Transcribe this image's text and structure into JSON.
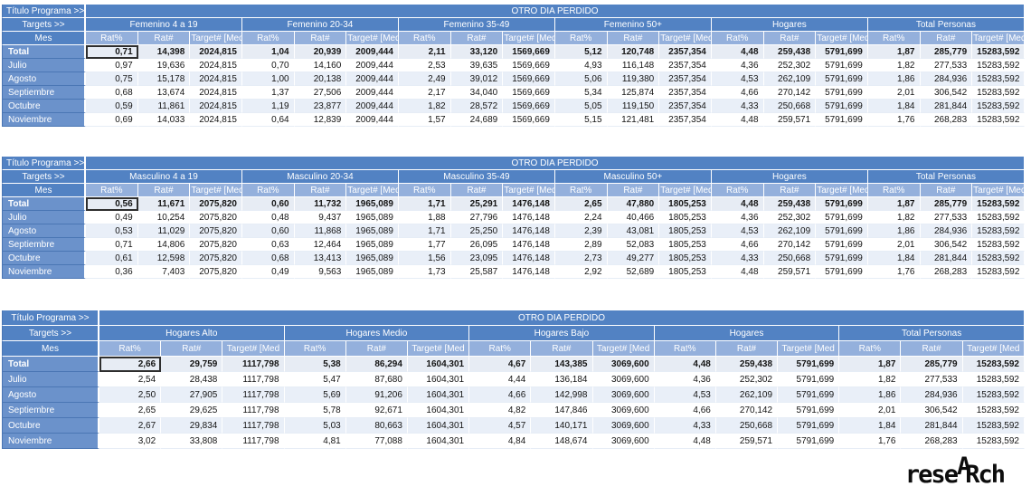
{
  "band_title": "OTRO DIA PERDIDO",
  "corner_labels": {
    "title_row": "Título Programa >>",
    "targets_row": "Targets >>",
    "mes_row": "Mes"
  },
  "subheaders": [
    "Rat%",
    "Rat#",
    "Target# [Med"
  ],
  "row_labels": [
    "Total",
    "Julio",
    "Agosto",
    "Septiembre",
    "Octubre",
    "Noviembre"
  ],
  "colors": {
    "header_blue": "#5282c3",
    "subheader_blue": "#94b0dc",
    "row_label_blue": "#6b92cb",
    "total_row_bg": "#e7ecf4",
    "banded_row_bg": "#e9eff8",
    "selection_border": "#2e2e2e"
  },
  "tables": [
    {
      "id": "femenino",
      "label_col_width": 93,
      "groups": [
        {
          "label": "Femenino 4 a 19",
          "target": "2024,815",
          "rows": [
            [
              "0,71",
              "14,398"
            ],
            [
              "0,97",
              "19,636"
            ],
            [
              "0,75",
              "15,178"
            ],
            [
              "0,68",
              "13,674"
            ],
            [
              "0,59",
              "11,861"
            ],
            [
              "0,69",
              "14,033"
            ]
          ]
        },
        {
          "label": "Femenino 20-34",
          "target": "2009,444",
          "rows": [
            [
              "1,04",
              "20,939"
            ],
            [
              "0,70",
              "14,160"
            ],
            [
              "1,00",
              "20,138"
            ],
            [
              "1,37",
              "27,506"
            ],
            [
              "1,19",
              "23,877"
            ],
            [
              "0,64",
              "12,839"
            ]
          ]
        },
        {
          "label": "Femenino 35-49",
          "target": "1569,669",
          "rows": [
            [
              "2,11",
              "33,120"
            ],
            [
              "2,53",
              "39,635"
            ],
            [
              "2,49",
              "39,012"
            ],
            [
              "2,17",
              "34,040"
            ],
            [
              "1,82",
              "28,572"
            ],
            [
              "1,57",
              "24,689"
            ]
          ]
        },
        {
          "label": "Femenino 50+",
          "target": "2357,354",
          "rows": [
            [
              "5,12",
              "120,748"
            ],
            [
              "4,93",
              "116,148"
            ],
            [
              "5,06",
              "119,380"
            ],
            [
              "5,34",
              "125,874"
            ],
            [
              "5,05",
              "119,150"
            ],
            [
              "5,15",
              "121,481"
            ]
          ]
        },
        {
          "label": "Hogares",
          "target": "5791,699",
          "rows": [
            [
              "4,48",
              "259,438"
            ],
            [
              "4,36",
              "252,302"
            ],
            [
              "4,53",
              "262,109"
            ],
            [
              "4,66",
              "270,142"
            ],
            [
              "4,33",
              "250,668"
            ],
            [
              "4,48",
              "259,571"
            ]
          ]
        },
        {
          "label": "Total Personas",
          "target": "15283,592",
          "rows": [
            [
              "1,87",
              "285,779"
            ],
            [
              "1,82",
              "277,533"
            ],
            [
              "1,86",
              "284,936"
            ],
            [
              "2,01",
              "306,542"
            ],
            [
              "1,84",
              "281,844"
            ],
            [
              "1,76",
              "268,283"
            ]
          ]
        }
      ]
    },
    {
      "id": "masculino",
      "label_col_width": 93,
      "groups": [
        {
          "label": "Masculino 4 a 19",
          "target": "2075,820",
          "rows": [
            [
              "0,56",
              "11,671"
            ],
            [
              "0,49",
              "10,254"
            ],
            [
              "0,53",
              "11,029"
            ],
            [
              "0,71",
              "14,806"
            ],
            [
              "0,61",
              "12,598"
            ],
            [
              "0,36",
              "7,403"
            ]
          ]
        },
        {
          "label": "Masculino 20-34",
          "target": "1965,089",
          "rows": [
            [
              "0,60",
              "11,732"
            ],
            [
              "0,48",
              "9,437"
            ],
            [
              "0,60",
              "11,868"
            ],
            [
              "0,63",
              "12,464"
            ],
            [
              "0,68",
              "13,413"
            ],
            [
              "0,49",
              "9,563"
            ]
          ]
        },
        {
          "label": "Masculino 35-49",
          "target": "1476,148",
          "rows": [
            [
              "1,71",
              "25,291"
            ],
            [
              "1,88",
              "27,796"
            ],
            [
              "1,71",
              "25,250"
            ],
            [
              "1,77",
              "26,095"
            ],
            [
              "1,56",
              "23,095"
            ],
            [
              "1,73",
              "25,587"
            ]
          ]
        },
        {
          "label": "Masculino 50+",
          "target": "1805,253",
          "rows": [
            [
              "2,65",
              "47,880"
            ],
            [
              "2,24",
              "40,466"
            ],
            [
              "2,39",
              "43,081"
            ],
            [
              "2,89",
              "52,083"
            ],
            [
              "2,73",
              "49,277"
            ],
            [
              "2,92",
              "52,689"
            ]
          ]
        },
        {
          "label": "Hogares",
          "target": "5791,699",
          "rows": [
            [
              "4,48",
              "259,438"
            ],
            [
              "4,36",
              "252,302"
            ],
            [
              "4,53",
              "262,109"
            ],
            [
              "4,66",
              "270,142"
            ],
            [
              "4,33",
              "250,668"
            ],
            [
              "4,48",
              "259,571"
            ]
          ]
        },
        {
          "label": "Total Personas",
          "target": "15283,592",
          "rows": [
            [
              "1,87",
              "285,779"
            ],
            [
              "1,82",
              "277,533"
            ],
            [
              "1,86",
              "284,936"
            ],
            [
              "2,01",
              "306,542"
            ],
            [
              "1,84",
              "281,844"
            ],
            [
              "1,76",
              "268,283"
            ]
          ]
        }
      ]
    },
    {
      "id": "hogares",
      "label_col_width": 108,
      "groups": [
        {
          "label": "Hogares Alto",
          "target": "1117,798",
          "rows": [
            [
              "2,66",
              "29,759"
            ],
            [
              "2,54",
              "28,438"
            ],
            [
              "2,50",
              "27,905"
            ],
            [
              "2,65",
              "29,625"
            ],
            [
              "2,67",
              "29,834"
            ],
            [
              "3,02",
              "33,808"
            ]
          ]
        },
        {
          "label": "Hogares Medio",
          "target": "1604,301",
          "rows": [
            [
              "5,38",
              "86,294"
            ],
            [
              "5,47",
              "87,680"
            ],
            [
              "5,69",
              "91,206"
            ],
            [
              "5,78",
              "92,671"
            ],
            [
              "5,03",
              "80,663"
            ],
            [
              "4,81",
              "77,088"
            ]
          ]
        },
        {
          "label": "Hogares Bajo",
          "target": "3069,600",
          "rows": [
            [
              "4,67",
              "143,385"
            ],
            [
              "4,44",
              "136,184"
            ],
            [
              "4,66",
              "142,998"
            ],
            [
              "4,82",
              "147,846"
            ],
            [
              "4,57",
              "140,171"
            ],
            [
              "4,84",
              "148,674"
            ]
          ]
        },
        {
          "label": "Hogares",
          "target": "5791,699",
          "rows": [
            [
              "4,48",
              "259,438"
            ],
            [
              "4,36",
              "252,302"
            ],
            [
              "4,53",
              "262,109"
            ],
            [
              "4,66",
              "270,142"
            ],
            [
              "4,33",
              "250,668"
            ],
            [
              "4,48",
              "259,571"
            ]
          ]
        },
        {
          "label": "Total Personas",
          "target": "15283,592",
          "rows": [
            [
              "1,87",
              "285,779"
            ],
            [
              "1,82",
              "277,533"
            ],
            [
              "1,86",
              "284,936"
            ],
            [
              "2,01",
              "306,542"
            ],
            [
              "1,84",
              "281,844"
            ],
            [
              "1,76",
              "268,283"
            ]
          ]
        }
      ]
    }
  ],
  "logo": {
    "pre": "rese",
    "a": "A",
    "r": "R",
    "post": "ch"
  }
}
